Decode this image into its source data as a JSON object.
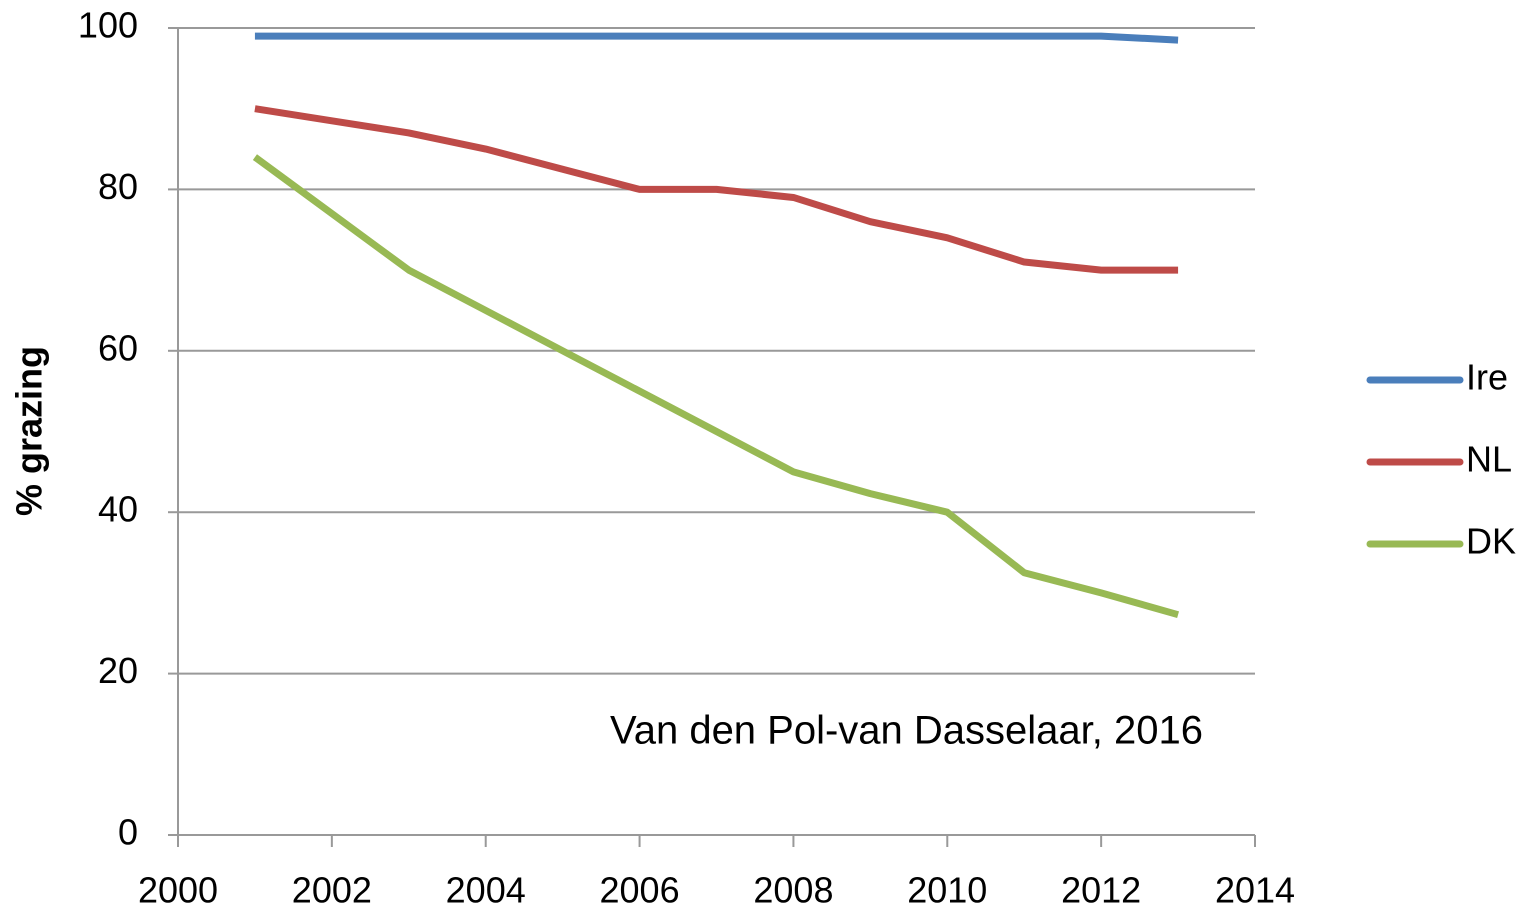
{
  "chart_data": {
    "type": "line",
    "y_label": "% grazing",
    "annotation": "Van den Pol-van Dasselaar, 2016",
    "x": [
      2001,
      2002,
      2003,
      2004,
      2005,
      2006,
      2007,
      2008,
      2009,
      2010,
      2011,
      2012,
      2013
    ],
    "series": [
      {
        "name": "Ire",
        "color": "#4a7ebb",
        "values": [
          99,
          99,
          99,
          99,
          99,
          99,
          99,
          99,
          99,
          99,
          99,
          99,
          98.5
        ]
      },
      {
        "name": "NL",
        "color": "#be4b48",
        "values": [
          90,
          88.5,
          87,
          85,
          82.5,
          80,
          80,
          79,
          76,
          74,
          71,
          70,
          70
        ]
      },
      {
        "name": "DK",
        "color": "#98b954",
        "values": [
          84,
          77,
          70,
          65,
          60,
          55,
          50,
          45,
          42.3,
          40,
          32.5,
          30,
          27.3
        ]
      }
    ],
    "xlim": [
      2000,
      2014
    ],
    "xticks": [
      2000,
      2002,
      2004,
      2006,
      2008,
      2010,
      2012,
      2014
    ],
    "ylim": [
      0,
      100
    ],
    "yticks": [
      0,
      20,
      40,
      60,
      80,
      100
    ],
    "grid": true,
    "legend": "right"
  }
}
